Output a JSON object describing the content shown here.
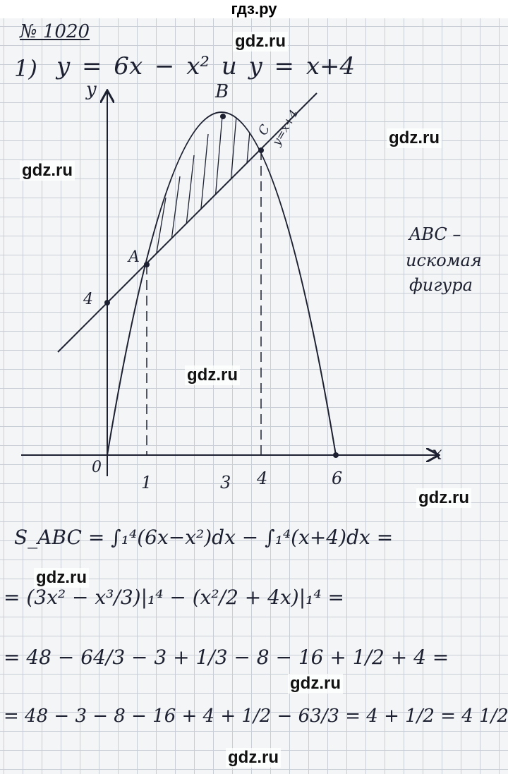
{
  "header": {
    "site": "гдз.ру"
  },
  "problem": {
    "number": "№ 1020",
    "part": "1)",
    "statement": "y = 6x − x²    и    y = x+4"
  },
  "graph": {
    "y_axis": "y",
    "x_axis": "x",
    "point_a": "A",
    "point_b": "B",
    "point_c": "C",
    "line_label": "y=x+4",
    "y_tick": "4",
    "origin": "0",
    "x_ticks": [
      "1",
      "3",
      "4",
      "6"
    ]
  },
  "note": [
    "ABC –",
    "искомая",
    "фигура"
  ],
  "solution": {
    "lines": [
      "S_ABC = ∫₁⁴(6x−x²)dx − ∫₁⁴(x+4)dx =",
      "= (3x² − x³/3)|₁⁴ − (x²/2 + 4x)|₁⁴ =",
      "= 48 − 64/3 − 3 + 1/3 − 8 − 16 + 1/2 + 4 =",
      "= 48 − 3 − 8 − 16 + 4 + 1/2 − 63/3 = 4 + 1/2 = 4 1/2"
    ]
  },
  "watermarks": [
    "gdz.ru",
    "gdz.ru",
    "gdz.ru",
    "gdz.ru",
    "gdz.ru",
    "gdz.ru",
    "gdz.ru",
    "gdz.ru"
  ]
}
